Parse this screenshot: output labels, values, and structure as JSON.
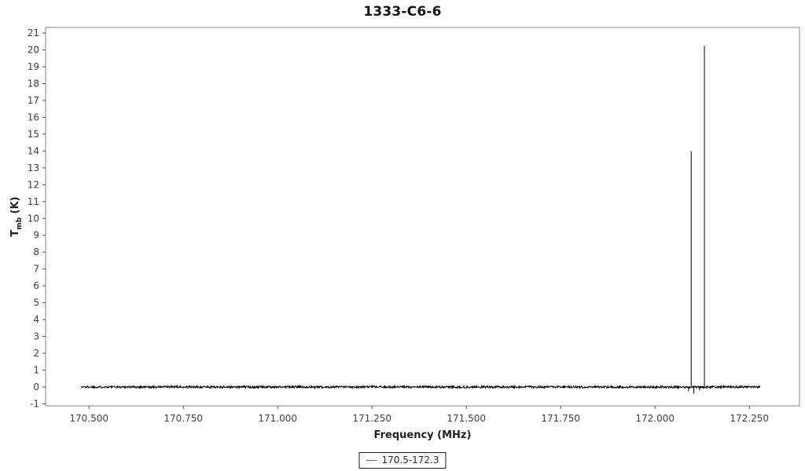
{
  "chart_data": {
    "type": "line",
    "title": "1333-C6-6",
    "xlabel": "Frequency (MHz)",
    "ylabel": "Tmb (K)",
    "ylabel_parts": {
      "prefix": "T",
      "subscript": "mb",
      "suffix": " (K)"
    },
    "xlim": [
      170.385,
      172.383
    ],
    "ylim": [
      -1.12,
      21.33
    ],
    "x_tick_values": [
      170.5,
      170.75,
      171.0,
      171.25,
      171.5,
      171.75,
      172.0,
      172.25
    ],
    "x_tick_labels": [
      "170.500",
      "170.750",
      "171.000",
      "171.250",
      "171.500",
      "171.750",
      "172.000",
      "172.250"
    ],
    "y_tick_values": [
      -1,
      0,
      1,
      2,
      3,
      4,
      5,
      6,
      7,
      8,
      9,
      10,
      11,
      12,
      13,
      14,
      15,
      16,
      17,
      18,
      19,
      20,
      21
    ],
    "grid": false,
    "legend_position": "bottom-center",
    "legend": [
      {
        "label": "170.5-172.3"
      }
    ],
    "series": [
      {
        "name": "170.5-172.3",
        "x_start_MHz": 170.479,
        "x_end_MHz": 172.279,
        "baseline_K": 0.0,
        "noise_amplitude_K": 0.06,
        "peaks": [
          {
            "frequency_MHz": 172.096,
            "Tmb_K": 14.0
          },
          {
            "frequency_MHz": 172.131,
            "Tmb_K": 20.25
          }
        ],
        "dips": [
          {
            "frequency_MHz": 172.089,
            "Tmb_K": -0.25
          },
          {
            "frequency_MHz": 172.103,
            "Tmb_K": -0.4
          },
          {
            "frequency_MHz": 172.118,
            "Tmb_K": -0.2
          }
        ]
      }
    ],
    "colors": {
      "background": "#ffffff",
      "line": "#000000",
      "axis_border": "#9a9a9a",
      "tick": "#555555",
      "tick_label": "#3d3d3d",
      "title": "#111111",
      "axis_label": "#222222",
      "legend_border": "#1a1a1a",
      "legend_line": "#666666"
    }
  }
}
